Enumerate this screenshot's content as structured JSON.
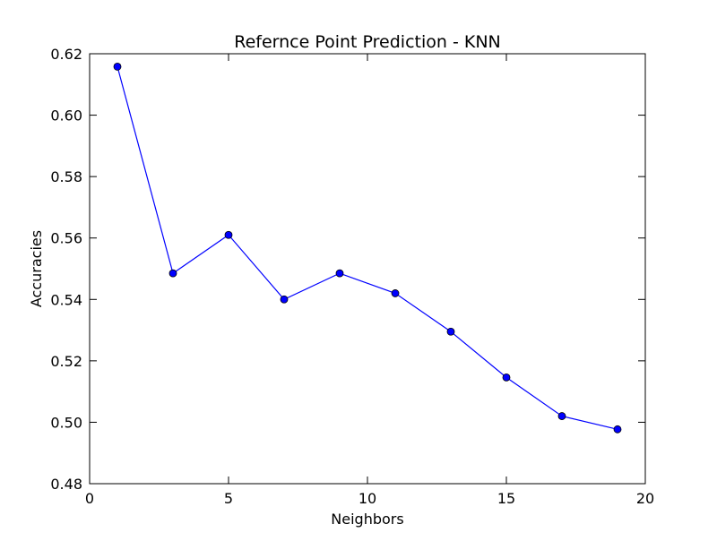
{
  "chart_data": {
    "type": "line",
    "title": "Refernce Point Prediction - KNN",
    "xlabel": "Neighbors",
    "ylabel": "Accuracies",
    "xlim": [
      0,
      20
    ],
    "ylim": [
      0.48,
      0.62
    ],
    "xticks": [
      "0",
      "5",
      "10",
      "15",
      "20"
    ],
    "yticks": [
      "0.48",
      "0.50",
      "0.52",
      "0.54",
      "0.56",
      "0.58",
      "0.60",
      "0.62"
    ],
    "grid": false,
    "legend": "none",
    "series": [
      {
        "color": "#0000ff",
        "marker": "circle",
        "x": [
          1,
          3,
          5,
          7,
          9,
          11,
          13,
          15,
          17,
          19
        ],
        "y": [
          0.6158,
          0.5485,
          0.561,
          0.54,
          0.5485,
          0.542,
          0.5295,
          0.5146,
          0.502,
          0.4977
        ]
      }
    ]
  }
}
